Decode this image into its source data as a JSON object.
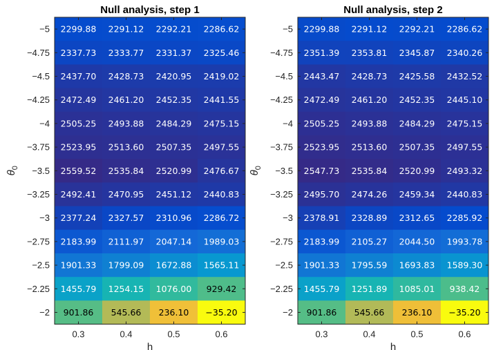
{
  "chart_data": [
    {
      "type": "heatmap",
      "title": "Null analysis, step 1",
      "xlabel": "h",
      "ylabel_main": "θ",
      "ylabel_sub": "0",
      "x": [
        "0.3",
        "0.4",
        "0.5",
        "0.6"
      ],
      "y": [
        "-5",
        "-4.75",
        "-4.5",
        "-4.25",
        "-4",
        "-3.75",
        "-3.5",
        "-3.25",
        "-3",
        "-2.75",
        "-2.5",
        "-2.25",
        "-2"
      ],
      "values": [
        [
          "2299.88",
          "2291.12",
          "2292.21",
          "2286.62"
        ],
        [
          "2337.73",
          "2333.77",
          "2331.37",
          "2325.46"
        ],
        [
          "2437.70",
          "2428.73",
          "2420.95",
          "2419.02"
        ],
        [
          "2472.49",
          "2461.20",
          "2452.35",
          "2441.55"
        ],
        [
          "2505.25",
          "2493.88",
          "2484.29",
          "2475.15"
        ],
        [
          "2523.95",
          "2513.60",
          "2507.35",
          "2497.55"
        ],
        [
          "2559.52",
          "2535.84",
          "2520.99",
          "2476.67"
        ],
        [
          "2492.41",
          "2470.95",
          "2451.12",
          "2440.83"
        ],
        [
          "2377.24",
          "2327.57",
          "2310.96",
          "2286.72"
        ],
        [
          "2183.99",
          "2111.97",
          "2047.14",
          "1989.03"
        ],
        [
          "1901.33",
          "1799.09",
          "1672.88",
          "1565.11"
        ],
        [
          "1455.79",
          "1254.15",
          "1076.00",
          "929.42"
        ],
        [
          "901.86",
          "545.66",
          "236.10",
          "-35.20"
        ]
      ],
      "colormap": "parula"
    },
    {
      "type": "heatmap",
      "title": "Null analysis, step 2",
      "xlabel": "h",
      "ylabel_main": "θ",
      "ylabel_sub": "0",
      "x": [
        "0.3",
        "0.4",
        "0.5",
        "0.6"
      ],
      "y": [
        "-5",
        "-4.75",
        "-4.5",
        "-4.25",
        "-4",
        "-3.75",
        "-3.5",
        "-3.25",
        "-3",
        "-2.75",
        "-2.5",
        "-2.25",
        "-2"
      ],
      "values": [
        [
          "2299.88",
          "2291.12",
          "2292.21",
          "2286.62"
        ],
        [
          "2351.39",
          "2353.81",
          "2345.87",
          "2340.26"
        ],
        [
          "2443.47",
          "2428.73",
          "2425.58",
          "2432.52"
        ],
        [
          "2472.49",
          "2461.20",
          "2452.35",
          "2445.10"
        ],
        [
          "2505.25",
          "2493.88",
          "2484.29",
          "2475.15"
        ],
        [
          "2523.95",
          "2513.60",
          "2507.35",
          "2497.55"
        ],
        [
          "2547.73",
          "2535.84",
          "2520.99",
          "2493.32"
        ],
        [
          "2495.70",
          "2474.26",
          "2459.34",
          "2440.83"
        ],
        [
          "2378.91",
          "2328.89",
          "2312.65",
          "2285.92"
        ],
        [
          "2183.99",
          "2105.27",
          "2044.50",
          "1993.78"
        ],
        [
          "1901.33",
          "1795.59",
          "1693.83",
          "1589.30"
        ],
        [
          "1455.79",
          "1251.89",
          "1085.01",
          "938.42"
        ],
        [
          "901.86",
          "545.66",
          "236.10",
          "-35.20"
        ]
      ],
      "colormap": "parula"
    }
  ]
}
